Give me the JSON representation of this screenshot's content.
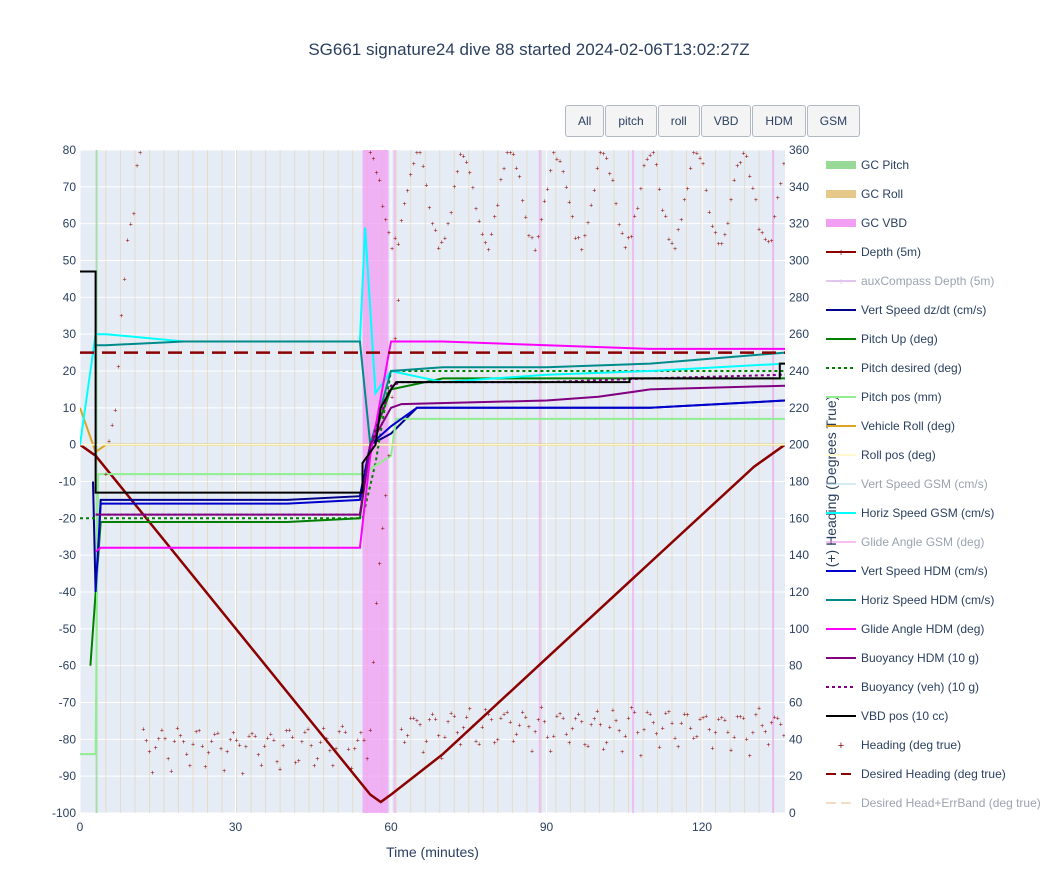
{
  "title": "SG661 signature24 dive 88 started 2024-02-06T13:02:27Z",
  "buttons": [
    "All",
    "pitch",
    "roll",
    "VBD",
    "HDM",
    "GSM"
  ],
  "chart_data": {
    "type": "line",
    "xlabel": "Time (minutes)",
    "ylabel": "",
    "y2label": "(+) Heading (Degrees True)",
    "xlim": [
      0,
      136
    ],
    "ylim": [
      -100,
      80
    ],
    "y2lim": [
      0,
      360
    ],
    "xticks": [
      0,
      30,
      60,
      90,
      120
    ],
    "yticks": [
      -100,
      -90,
      -80,
      -70,
      -60,
      -50,
      -40,
      -30,
      -20,
      -10,
      0,
      10,
      20,
      30,
      40,
      50,
      60,
      70,
      80
    ],
    "y2ticks": [
      0,
      20,
      40,
      60,
      80,
      100,
      120,
      140,
      160,
      180,
      200,
      220,
      240,
      260,
      280,
      300,
      320,
      340,
      360
    ],
    "legend_position": "right",
    "vbd_band": [
      54.5,
      59.5
    ],
    "series": [
      {
        "name": "GC Pitch",
        "color": "#98d998",
        "style": "band"
      },
      {
        "name": "GC Roll",
        "color": "#e6c98a",
        "style": "band"
      },
      {
        "name": "GC VBD",
        "color": "#f29ef2",
        "style": "band"
      },
      {
        "name": "Depth (5m)",
        "color": "#8b0000",
        "style": "line-marker",
        "x": [
          0,
          3,
          56,
          58,
          60,
          70,
          90,
          110,
          130,
          136
        ],
        "y": [
          0,
          -3,
          -95,
          -97,
          -95,
          -84,
          -58,
          -32,
          -6,
          0
        ]
      },
      {
        "name": "auxCompass Depth (5m)",
        "color": "#c58be0",
        "style": "line-marker",
        "visible": false
      },
      {
        "name": "Vert Speed dz/dt (cm/s)",
        "color": "#00008b",
        "style": "line",
        "x": [
          2.5,
          3,
          4,
          20,
          40,
          54,
          56,
          60,
          65,
          90,
          110,
          136
        ],
        "y": [
          -10,
          -40,
          -15,
          -15,
          -15,
          -14,
          0,
          3,
          10,
          10,
          10,
          12
        ]
      },
      {
        "name": "Pitch Up (deg)",
        "color": "#008000",
        "style": "line",
        "x": [
          2,
          4,
          20,
          40,
          54,
          56,
          60,
          70,
          90,
          110,
          136
        ],
        "y": [
          -60,
          -21,
          -21,
          -21,
          -20,
          0,
          15,
          18,
          18,
          18,
          18
        ]
      },
      {
        "name": "Pitch desired (deg)",
        "color": "#008000",
        "style": "dot",
        "x": [
          0,
          54.5,
          57,
          60,
          136
        ],
        "y": [
          -20,
          -20,
          -5,
          20,
          20
        ]
      },
      {
        "name": "Pitch pos (mm)",
        "color": "#90ee90",
        "style": "line",
        "x": [
          0,
          3,
          3.5,
          54.5,
          60,
          61,
          136
        ],
        "y": [
          -84,
          -84,
          -8,
          -8,
          -3,
          7,
          7
        ]
      },
      {
        "name": "Vehicle Roll (deg)",
        "color": "#daa520",
        "style": "line",
        "x": [
          0,
          3,
          5,
          55,
          60,
          136
        ],
        "y": [
          10,
          -2,
          0,
          0,
          0,
          0
        ]
      },
      {
        "name": "Roll pos (deg)",
        "color": "#fffacd",
        "style": "line",
        "x": [
          0,
          136
        ],
        "y": [
          0,
          0
        ]
      },
      {
        "name": "Vert Speed GSM (cm/s)",
        "color": "#add8e6",
        "style": "line",
        "visible": false
      },
      {
        "name": "Horiz Speed GSM (cm/s)",
        "color": "#00ffff",
        "style": "line",
        "x": [
          0,
          3,
          5,
          20,
          40,
          54,
          55,
          57,
          60,
          70,
          90,
          110,
          136
        ],
        "y": [
          0,
          30,
          30,
          28,
          28,
          28,
          59,
          14,
          20,
          17,
          19,
          20,
          22
        ]
      },
      {
        "name": "Glide Angle GSM (deg)",
        "color": "#ee82ee",
        "style": "line",
        "visible": false
      },
      {
        "name": "Vert Speed HDM (cm/s)",
        "color": "#0000cd",
        "style": "line",
        "x": [
          3,
          4,
          20,
          40,
          54,
          56,
          60,
          65,
          90,
          110,
          136
        ],
        "y": [
          -40,
          -16,
          -16,
          -16,
          -15,
          0,
          5,
          10,
          10,
          10,
          12
        ]
      },
      {
        "name": "Horiz Speed HDM (cm/s)",
        "color": "#008b8b",
        "style": "line",
        "x": [
          3,
          5,
          20,
          40,
          54,
          56,
          60,
          70,
          90,
          110,
          136
        ],
        "y": [
          27,
          27,
          28,
          28,
          28,
          0,
          20,
          21,
          21,
          22,
          25
        ]
      },
      {
        "name": "Glide Angle HDM (deg)",
        "color": "#ff00ff",
        "style": "line",
        "x": [
          3,
          4,
          20,
          40,
          54,
          56,
          60,
          70,
          90,
          110,
          136
        ],
        "y": [
          -29,
          -28,
          -28,
          -28,
          -28,
          -3,
          28,
          28,
          27,
          26,
          26
        ]
      },
      {
        "name": "Buoyancy HDM (10 g)",
        "color": "#800080",
        "style": "line",
        "x": [
          3,
          5,
          54,
          56,
          60,
          62,
          90,
          100,
          110,
          136
        ],
        "y": [
          -19,
          -19,
          -19,
          0,
          10,
          11,
          12,
          13,
          15,
          16
        ]
      },
      {
        "name": "Buoyancy (veh) (10 g)",
        "color": "#800080",
        "style": "dot",
        "x": [
          3,
          5,
          54,
          56,
          60,
          62,
          90,
          110,
          136
        ],
        "y": [
          -19,
          -19,
          -19,
          0,
          16,
          17,
          17,
          18,
          19
        ]
      },
      {
        "name": "VBD pos (10 cc)",
        "color": "#000000",
        "style": "step",
        "x": [
          0,
          3,
          3,
          54.5,
          54.5,
          57,
          58,
          60,
          61,
          106,
          106,
          135,
          135,
          136
        ],
        "y": [
          47,
          47,
          -13,
          -13,
          -5,
          0,
          10,
          15,
          17,
          17,
          18,
          18,
          22,
          22
        ]
      },
      {
        "name": "Heading (deg true)",
        "color": "#8b0000",
        "style": "marker"
      },
      {
        "name": "Desired Heading (deg true)",
        "color": "#8b0000",
        "style": "dash",
        "x": [
          0,
          136
        ],
        "y2": [
          250,
          250
        ]
      },
      {
        "name": "Desired Head+ErrBand (deg true)",
        "color": "#e9b98a",
        "style": "dash",
        "visible": false
      }
    ]
  }
}
